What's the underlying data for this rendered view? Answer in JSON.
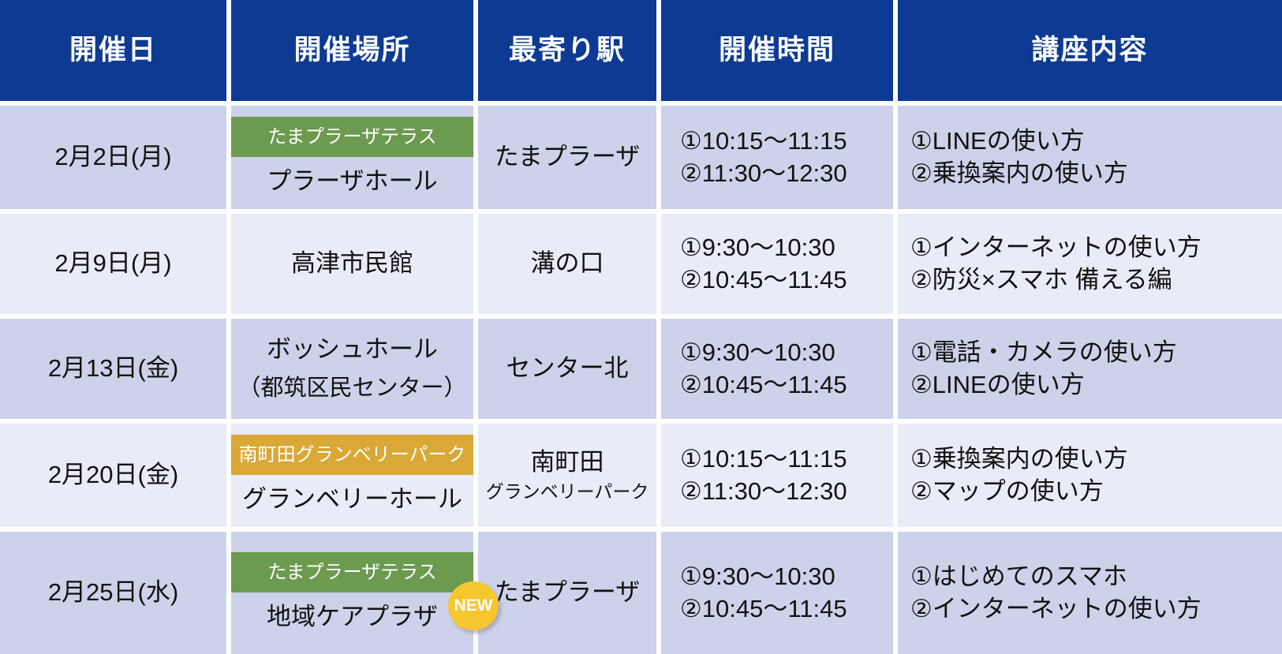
{
  "colors": {
    "header_bg": "#0d3a93",
    "row_dark": "#ccd2e9",
    "row_light": "#e9ebf6",
    "badge_green": "#6c9a4f",
    "badge_gold": "#d9a836",
    "new_badge_bg": "#f6c62f"
  },
  "new_badge_label": "NEW",
  "table": {
    "headers": [
      "開催日",
      "開催場所",
      "最寄り駅",
      "開催時間",
      "講座内容"
    ],
    "rows": [
      {
        "date": "2月2日(月)",
        "venue_badge": "たまプラーザテラス",
        "venue_badge_color": "#6c9a4f",
        "venue": "プラーザホール",
        "venue_sub": "",
        "new_badge": false,
        "station": "たまプラーザ",
        "station_sub": "",
        "times": [
          "①10:15～11:15",
          "②11:30～12:30"
        ],
        "contents": [
          "①LINEの使い方",
          "②乗換案内の使い方"
        ]
      },
      {
        "date": "2月9日(月)",
        "venue_badge": "",
        "venue_badge_color": "",
        "venue": "高津市民館",
        "venue_sub": "",
        "new_badge": false,
        "station": "溝の口",
        "station_sub": "",
        "times": [
          "①9:30～10:30",
          "②10:45～11:45"
        ],
        "contents": [
          "①インターネットの使い方",
          "②防災×スマホ 備える編"
        ]
      },
      {
        "date": "2月13日(金)",
        "venue_badge": "",
        "venue_badge_color": "",
        "venue": "ボッシュホール",
        "venue_sub": "（都筑区民センター）",
        "new_badge": false,
        "station": "センター北",
        "station_sub": "",
        "times": [
          "①9:30～10:30",
          "②10:45～11:45"
        ],
        "contents": [
          "①電話・カメラの使い方",
          "②LINEの使い方"
        ]
      },
      {
        "date": "2月20日(金)",
        "venue_badge": "南町田グランベリーパーク",
        "venue_badge_color": "#d9a836",
        "venue": "グランベリーホール",
        "venue_sub": "",
        "new_badge": false,
        "station": "南町田",
        "station_sub": "グランベリーパーク",
        "times": [
          "①10:15～11:15",
          "②11:30～12:30"
        ],
        "contents": [
          "①乗換案内の使い方",
          "②マップの使い方"
        ]
      },
      {
        "date": "2月25日(水)",
        "venue_badge": "たまプラーザテラス",
        "venue_badge_color": "#6c9a4f",
        "venue": "地域ケアプラザ",
        "venue_sub": "",
        "new_badge": true,
        "station": "たまプラーザ",
        "station_sub": "",
        "times": [
          "①9:30～10:30",
          "②10:45～11:45"
        ],
        "contents": [
          "①はじめてのスマホ",
          "②インターネットの使い方"
        ]
      }
    ]
  }
}
